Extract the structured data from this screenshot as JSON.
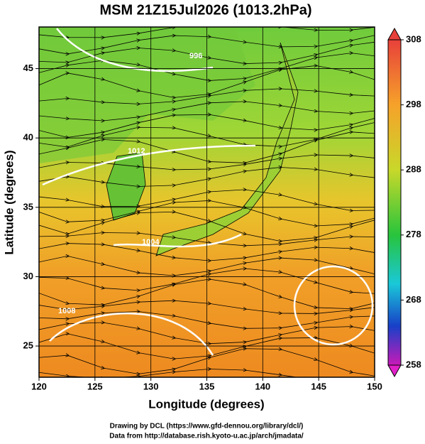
{
  "title": "MSM 21Z15Jul2026 (1013.2hPa)",
  "map": {
    "x_label": "Longitude (degrees)",
    "y_label": "Latitude  (degrees)",
    "xlim": [
      120,
      150
    ],
    "ylim": [
      22.75,
      48
    ],
    "xticks": [
      120,
      125,
      130,
      135,
      140,
      145,
      150
    ],
    "yticks": [
      25,
      30,
      35,
      40,
      45
    ],
    "contour_labels": [
      "996",
      "1012",
      "1004",
      "1008"
    ]
  },
  "colorbar": {
    "lim": [
      258,
      308
    ],
    "ticks": [
      258,
      268,
      278,
      288,
      298,
      308
    ]
  },
  "credits": [
    "Drawing by DCL (https://www.gfd-dennou.org/library/dcl/)",
    "Data from http://database.rish.kyoto-u.ac.jp/arch/jmadata/"
  ]
}
